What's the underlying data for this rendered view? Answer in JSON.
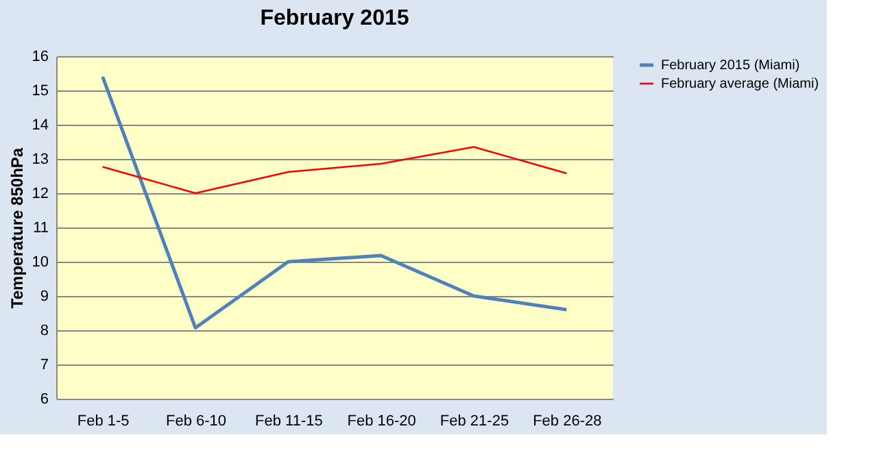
{
  "chart_data": {
    "type": "line",
    "title": "February 2015",
    "ylabel": "Temperature 850hPa",
    "categories": [
      "Feb 1-5",
      "Feb 6-10",
      "Feb 11-15",
      "Feb 16-20",
      "Feb 21-25",
      "Feb 26-28"
    ],
    "series": [
      {
        "name": "February 2015 (Miami)",
        "color": "#4f81bd",
        "values": [
          15.4,
          8.07,
          10.0,
          10.18,
          9.0,
          8.6
        ]
      },
      {
        "name": "February average (Miami)",
        "color": "#ff0000",
        "values": [
          12.77,
          12.0,
          12.62,
          12.86,
          13.35,
          12.58
        ]
      }
    ],
    "ylim": [
      6,
      16
    ],
    "yticks": [
      6,
      7,
      8,
      9,
      10,
      11,
      12,
      13,
      14,
      15,
      16
    ],
    "grid": "y",
    "legend": "right",
    "marker": "none",
    "line_style": "solid"
  }
}
